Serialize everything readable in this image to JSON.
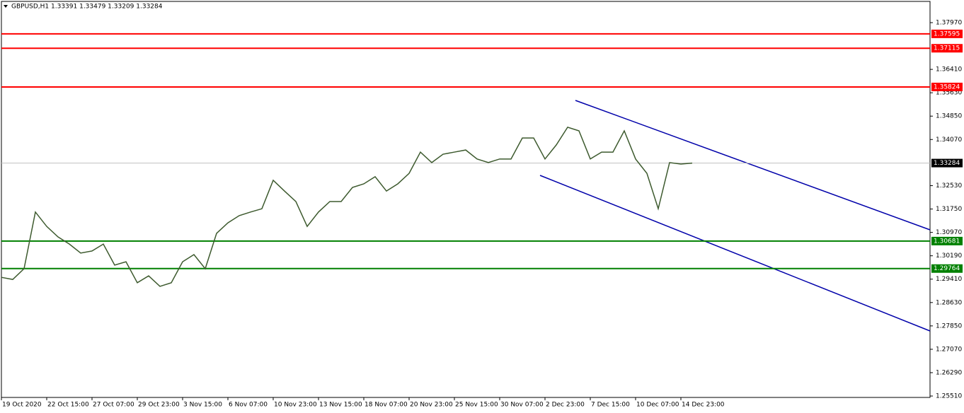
{
  "chart_data": {
    "type": "line",
    "title": "GBPUSD,H1  1.33391 1.33479 1.33209 1.33284",
    "categories": [
      "19 Oct 2020",
      null,
      null,
      null,
      "22 Oct 15:00",
      null,
      null,
      null,
      "27 Oct 07:00",
      null,
      null,
      null,
      "29 Oct 23:00",
      null,
      null,
      null,
      "3 Nov 15:00",
      null,
      null,
      null,
      "6 Nov 07:00",
      null,
      null,
      null,
      "10 Nov 23:00",
      null,
      null,
      null,
      "13 Nov 15:00",
      null,
      null,
      null,
      "18 Nov 07:00",
      null,
      null,
      null,
      "20 Nov 23:00",
      null,
      null,
      null,
      "25 Nov 15:00",
      null,
      null,
      null,
      "30 Nov 07:00",
      null,
      null,
      null,
      "2 Dec 23:00",
      null,
      null,
      null,
      "7 Dec 15:00",
      null,
      null,
      null,
      "10 Dec 07:00",
      null,
      null,
      null,
      "14 Dec 23:00",
      null,
      null,
      null,
      null,
      null,
      null,
      null,
      null,
      null,
      null,
      null,
      null,
      null,
      null,
      null,
      null,
      null,
      null,
      null,
      null,
      null
    ],
    "series": [
      {
        "name": "GBPUSD",
        "color": "#3d5a2e",
        "values": [
          1.2947,
          1.294,
          1.2976,
          1.3165,
          1.3117,
          1.3082,
          1.3058,
          1.3028,
          1.3035,
          1.3058,
          1.2988,
          1.2999,
          1.2929,
          1.2952,
          1.2917,
          1.2929,
          1.2999,
          1.3023,
          1.2976,
          1.3094,
          1.3129,
          1.3153,
          1.3165,
          1.3176,
          1.3271,
          1.3235,
          1.32,
          1.3117,
          1.3165,
          1.32,
          1.32,
          1.3247,
          1.3259,
          1.3283,
          1.3235,
          1.3259,
          1.3294,
          1.3365,
          1.333,
          1.3358,
          1.3365,
          1.3372,
          1.3342,
          1.333,
          1.3342,
          1.3342,
          1.3412,
          1.3412,
          1.3342,
          1.3389,
          1.3448,
          1.3436,
          1.3342,
          1.3365,
          1.3365,
          1.3436,
          1.3342,
          1.3294,
          1.3176,
          1.333,
          1.3325,
          1.33284,
          null,
          null,
          null,
          null,
          null,
          null,
          null,
          null,
          null,
          null,
          null,
          null,
          null,
          null,
          null,
          null,
          null,
          null,
          null,
          null
        ]
      }
    ],
    "ylim": [
      1.25463,
      1.38678
    ],
    "yticks": [
      {
        "value": 1.3797,
        "label": "1.37970"
      },
      {
        "value": 1.3641,
        "label": "1.36410"
      },
      {
        "value": 1.3563,
        "label": "1.35630"
      },
      {
        "value": 1.3485,
        "label": "1.34850"
      },
      {
        "value": 1.3407,
        "label": "1.34070"
      },
      {
        "value": 1.3253,
        "label": "1.32530"
      },
      {
        "value": 1.3175,
        "label": "1.31750"
      },
      {
        "value": 1.3097,
        "label": "1.30970"
      },
      {
        "value": 1.3019,
        "label": "1.30190"
      },
      {
        "value": 1.2941,
        "label": "1.29410"
      },
      {
        "value": 1.2863,
        "label": "1.28630"
      },
      {
        "value": 1.2785,
        "label": "1.27850"
      },
      {
        "value": 1.2707,
        "label": "1.27070"
      },
      {
        "value": 1.2629,
        "label": "1.26290"
      },
      {
        "value": 1.2551,
        "label": "1.25510"
      }
    ],
    "levels": [
      {
        "value": 1.37595,
        "color": "#ff0000"
      },
      {
        "value": 1.37115,
        "color": "#ff0000"
      },
      {
        "value": 1.35824,
        "color": "#ff0000"
      },
      {
        "value": 1.33284,
        "color": "#c0c0c0"
      },
      {
        "value": 1.30681,
        "color": "#008000"
      },
      {
        "value": 1.29764,
        "color": "#008000"
      }
    ]
  }
}
